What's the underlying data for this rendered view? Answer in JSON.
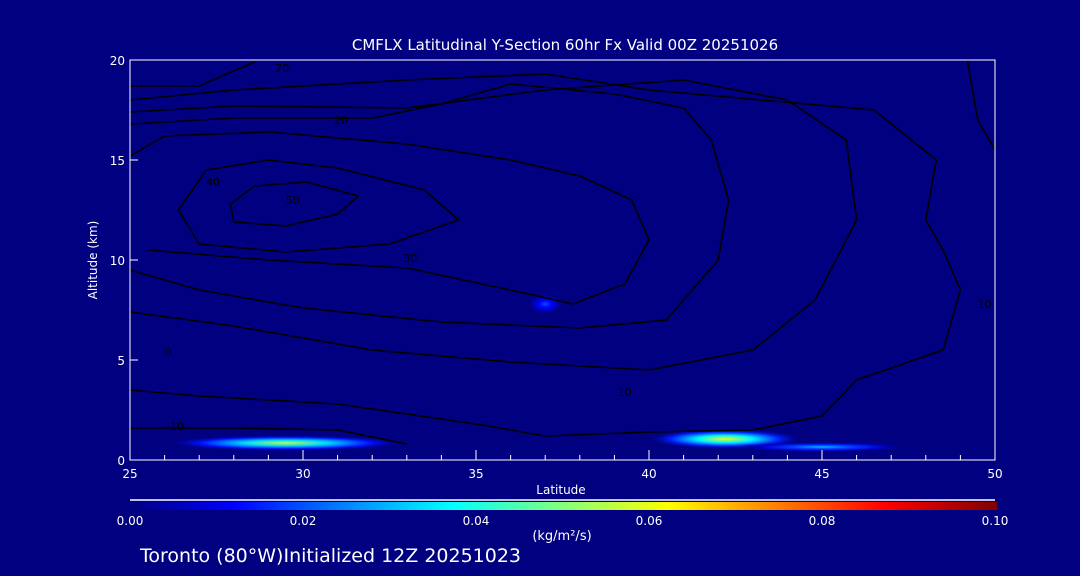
{
  "chart_data": {
    "type": "heatmap",
    "title": "CMFLX Latitudinal Y-Section 60hr  Fx Valid 00Z 20251026",
    "xlabel": "Latitude",
    "ylabel": "Altitude (km)",
    "xlim": [
      25,
      50
    ],
    "ylim": [
      0,
      20
    ],
    "xticks": [
      25,
      30,
      35,
      40,
      45,
      50
    ],
    "yticks": [
      0,
      5,
      10,
      15,
      20
    ],
    "background": "#000080",
    "colorbar": {
      "label": "(kg/m²/s)",
      "range": [
        0,
        0.1
      ],
      "ticks": [
        "0.00",
        "0.02",
        "0.04",
        "0.06",
        "0.08",
        "0.10"
      ],
      "colors": [
        "#000080",
        "#0000ff",
        "#00ffff",
        "#ffff00",
        "#ff0000",
        "#800000"
      ]
    },
    "shaded_regions": [
      {
        "lat": [
          25,
          32
        ],
        "alt": [
          0.5,
          1.3
        ],
        "center": [
          29.5,
          0.85
        ],
        "peak": 0.055
      },
      {
        "lat": [
          39.8,
          44.3
        ],
        "alt": [
          0.6,
          1.6
        ],
        "center": [
          42.2,
          1.05
        ],
        "peak": 0.06
      },
      {
        "lat": [
          43.5,
          48.5
        ],
        "alt": [
          0.4,
          0.9
        ],
        "center": [
          45.0,
          0.65
        ],
        "peak": 0.03
      },
      {
        "lat": [
          36.5,
          37.5
        ],
        "alt": [
          7.3,
          8.3
        ],
        "center": [
          37.0,
          7.8
        ],
        "peak": 0.02
      }
    ],
    "contours": [
      {
        "level": "50",
        "label_at": [
          29.7,
          13.0
        ],
        "points": [
          [
            27.9,
            12.8
          ],
          [
            28.6,
            13.7
          ],
          [
            30.1,
            13.9
          ],
          [
            31.6,
            13.2
          ],
          [
            31.0,
            12.3
          ],
          [
            29.5,
            11.7
          ],
          [
            28.0,
            11.9
          ],
          [
            27.9,
            12.8
          ]
        ]
      },
      {
        "level": "40",
        "label_at": [
          27.4,
          13.9
        ],
        "points": [
          [
            26.4,
            12.5
          ],
          [
            27.2,
            14.5
          ],
          [
            29.0,
            15.0
          ],
          [
            31.0,
            14.6
          ],
          [
            33.5,
            13.5
          ],
          [
            34.5,
            12.0
          ],
          [
            32.5,
            10.8
          ],
          [
            29.5,
            10.4
          ],
          [
            27.0,
            10.8
          ],
          [
            26.4,
            12.5
          ]
        ]
      },
      {
        "level": "30",
        "label_at": [
          33.1,
          10.1
        ],
        "points": [
          [
            25,
            15.2
          ],
          [
            26,
            16.2
          ],
          [
            29,
            16.4
          ],
          [
            33,
            15.8
          ],
          [
            36,
            15.0
          ],
          [
            38,
            14.2
          ],
          [
            39.5,
            13.0
          ],
          [
            40,
            11.0
          ],
          [
            39.3,
            8.8
          ],
          [
            37.8,
            7.8
          ],
          [
            36,
            8.5
          ],
          [
            33,
            9.6
          ],
          [
            29,
            10.0
          ],
          [
            25.5,
            10.5
          ]
        ]
      },
      {
        "level": "20",
        "label_at": [
          31.1,
          17.0
        ],
        "points": [
          [
            25,
            16.8
          ],
          [
            28,
            17.1
          ],
          [
            32,
            17.1
          ],
          [
            34,
            17.8
          ],
          [
            36,
            18.8
          ],
          [
            39,
            18.3
          ],
          [
            41,
            17.6
          ],
          [
            41.8,
            16.0
          ],
          [
            42.3,
            13.0
          ],
          [
            42,
            10.0
          ],
          [
            40.5,
            7.0
          ],
          [
            38,
            6.6
          ],
          [
            34,
            6.9
          ],
          [
            30,
            7.6
          ],
          [
            27,
            8.5
          ],
          [
            25,
            9.5
          ]
        ]
      },
      {
        "level": "10",
        "label_at": [
          39.3,
          3.4
        ],
        "points": [
          [
            25,
            17.4
          ],
          [
            28,
            17.7
          ],
          [
            33,
            17.6
          ],
          [
            37,
            18.5
          ],
          [
            41,
            19.0
          ],
          [
            44,
            18.0
          ],
          [
            45.7,
            16.0
          ],
          [
            46,
            12.0
          ],
          [
            44.8,
            8.0
          ],
          [
            43,
            5.5
          ],
          [
            40,
            4.5
          ],
          [
            36,
            4.9
          ],
          [
            32,
            5.5
          ],
          [
            28,
            6.7
          ],
          [
            25,
            7.4
          ]
        ]
      },
      {
        "level": "0",
        "label_at": [
          26.1,
          5.4
        ],
        "points": [
          [
            25,
            18.0
          ],
          [
            28,
            18.5
          ],
          [
            33,
            19.0
          ],
          [
            37,
            19.3
          ],
          [
            40,
            18.5
          ],
          [
            46.5,
            17.5
          ],
          [
            48.3,
            15.0
          ],
          [
            48,
            12.0
          ],
          [
            48.5,
            10.5
          ],
          [
            49,
            8.5
          ],
          [
            48.5,
            5.5
          ],
          [
            46,
            4.0
          ],
          [
            45,
            2.2
          ],
          [
            43,
            1.5
          ],
          [
            40,
            1.4
          ],
          [
            37,
            1.2
          ],
          [
            35,
            1.8
          ],
          [
            31,
            2.8
          ],
          [
            27,
            3.2
          ],
          [
            25,
            3.5
          ]
        ]
      },
      {
        "level": "70",
        "label_at": [
          29.4,
          19.6
        ],
        "points": [
          [
            25,
            18.7
          ],
          [
            27,
            18.7
          ],
          [
            28.6,
            19.9
          ]
        ]
      },
      {
        "level": "-10",
        "label_at": [
          26.3,
          1.7
        ],
        "points": [
          [
            25,
            1.6
          ],
          [
            28,
            1.6
          ],
          [
            31,
            1.5
          ],
          [
            33,
            0.8
          ]
        ]
      },
      {
        "level": "10",
        "label_at": [
          49.7,
          7.8
        ],
        "points": [
          [
            49.2,
            20
          ],
          [
            49.5,
            17
          ],
          [
            50,
            15.5
          ]
        ]
      }
    ]
  },
  "footer": "Toronto (80°W)Initialized 12Z 20251023"
}
